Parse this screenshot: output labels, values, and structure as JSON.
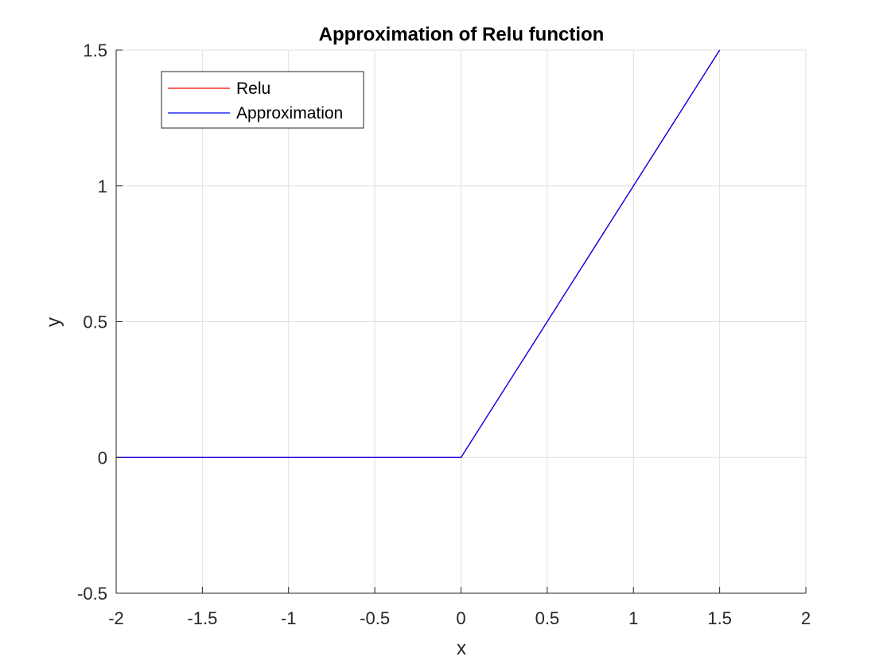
{
  "chart_data": {
    "type": "line",
    "title": "Approximation of Relu function",
    "xlabel": "x",
    "ylabel": "y",
    "xlim": [
      -2,
      2
    ],
    "ylim": [
      -0.5,
      1.5
    ],
    "xticks": [
      -2,
      -1.5,
      -1,
      -0.5,
      0,
      0.5,
      1,
      1.5,
      2
    ],
    "xtick_labels": [
      "-2",
      "-1.5",
      "-1",
      "-0.5",
      "0",
      "0.5",
      "1",
      "1.5",
      "2"
    ],
    "yticks": [
      -0.5,
      0,
      0.5,
      1,
      1.5
    ],
    "ytick_labels": [
      "-0.5",
      "0",
      "0.5",
      "1",
      "1.5"
    ],
    "grid": true,
    "legend_position": "top-left",
    "series": [
      {
        "name": "Relu",
        "color": "#ff0000",
        "x": [
          -2,
          0,
          1.5
        ],
        "y": [
          0,
          0,
          1.5
        ]
      },
      {
        "name": "Approximation",
        "color": "#0000ff",
        "x": [
          -2,
          0,
          1.5
        ],
        "y": [
          0,
          0,
          1.5
        ]
      }
    ]
  }
}
